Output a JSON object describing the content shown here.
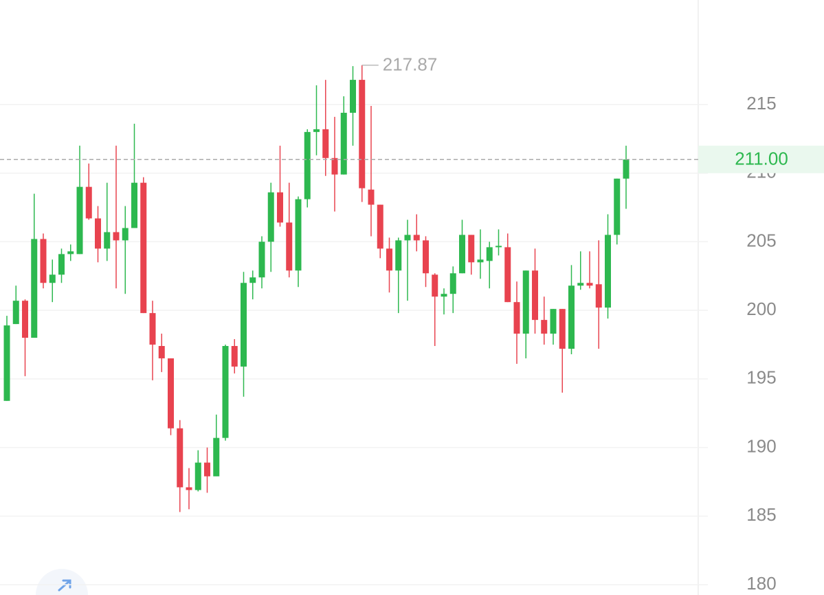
{
  "chart_data": {
    "type": "candlestick",
    "up_color": "#2db84f",
    "down_color": "#e8434f",
    "grid": true,
    "ylim": [
      179.25,
      222.62
    ],
    "yticks": [
      180,
      185,
      190,
      195,
      200,
      205,
      210,
      215
    ],
    "max_label": 217.87,
    "last_price": {
      "value": 211,
      "label": "211.00"
    },
    "series": {
      "open": [
        193.4,
        199.0,
        200.7,
        198.0,
        205.2,
        202.0,
        202.6,
        204.1,
        204.1,
        209.0,
        206.7,
        204.5,
        205.7,
        205.1,
        206.0,
        209.3,
        199.8,
        197.4,
        196.5,
        191.4,
        187.1,
        186.9,
        188.9,
        187.9,
        190.7,
        197.4,
        195.9,
        202.0,
        202.4,
        205.0,
        208.6,
        206.4,
        202.9,
        208.1,
        213.0,
        213.2,
        211.1,
        209.9,
        214.4,
        216.8,
        208.8,
        207.7,
        204.5,
        202.9,
        205.1,
        205.5,
        205.1,
        202.6,
        201.0,
        201.2,
        202.7,
        205.5,
        203.5,
        203.6,
        204.6,
        204.6,
        200.6,
        198.3,
        202.9,
        199.3,
        198.3,
        200.1,
        197.2,
        201.8,
        202.0,
        201.9,
        200.2,
        205.5,
        209.6
      ],
      "high": [
        199.6,
        201.8,
        200.8,
        208.5,
        205.6,
        203.7,
        204.5,
        204.8,
        212.0,
        210.7,
        207.6,
        209.3,
        212.0,
        207.6,
        213.6,
        209.7,
        200.7,
        198.3,
        196.5,
        192.0,
        188.5,
        189.8,
        190.0,
        192.4,
        197.5,
        197.9,
        202.8,
        202.9,
        205.4,
        209.3,
        212.0,
        209.3,
        208.3,
        213.2,
        216.4,
        216.8,
        214.1,
        215.6,
        217.8,
        217.87,
        214.9,
        207.7,
        205.3,
        205.3,
        206.6,
        207.0,
        205.4,
        202.7,
        201.6,
        203.2,
        206.6,
        205.5,
        205.9,
        205.0,
        205.9,
        205.6,
        202.1,
        202.9,
        204.5,
        201.0,
        200.1,
        200.1,
        203.3,
        204.3,
        204.3,
        205.1,
        207.0,
        209.6,
        212.0
      ],
      "low": [
        193.4,
        199.0,
        195.2,
        198.0,
        201.6,
        200.6,
        202.0,
        203.6,
        204.1,
        206.6,
        203.5,
        203.6,
        201.6,
        201.2,
        206.0,
        199.8,
        194.9,
        195.5,
        190.9,
        185.3,
        185.5,
        186.8,
        186.7,
        187.9,
        190.5,
        195.4,
        193.7,
        200.8,
        201.6,
        202.8,
        206.1,
        202.4,
        201.7,
        207.5,
        211.3,
        209.8,
        207.2,
        209.9,
        212.0,
        207.9,
        205.4,
        203.8,
        201.3,
        199.8,
        200.7,
        204.3,
        201.7,
        197.4,
        199.7,
        199.8,
        202.7,
        202.6,
        202.3,
        201.6,
        204.0,
        200.6,
        196.1,
        196.5,
        198.3,
        197.5,
        197.5,
        194.0,
        196.8,
        201.5,
        201.6,
        197.2,
        199.4,
        204.8,
        207.4
      ],
      "close": [
        198.9,
        200.7,
        198.0,
        205.2,
        202.0,
        202.6,
        204.1,
        204.3,
        209.0,
        206.7,
        204.5,
        205.7,
        205.1,
        206.0,
        209.3,
        199.8,
        197.5,
        196.5,
        191.4,
        187.1,
        186.9,
        188.9,
        187.9,
        190.7,
        197.4,
        195.9,
        202.0,
        202.4,
        205.0,
        208.6,
        206.4,
        202.9,
        208.1,
        213.0,
        213.2,
        211.1,
        209.9,
        214.4,
        216.8,
        208.9,
        207.7,
        204.5,
        202.9,
        205.1,
        205.5,
        205.1,
        202.7,
        201.0,
        201.2,
        202.7,
        205.5,
        203.5,
        203.7,
        204.6,
        204.7,
        200.6,
        198.3,
        202.9,
        199.3,
        198.3,
        200.1,
        197.2,
        201.8,
        202.0,
        201.8,
        200.2,
        205.5,
        209.6,
        211.0
      ]
    }
  }
}
